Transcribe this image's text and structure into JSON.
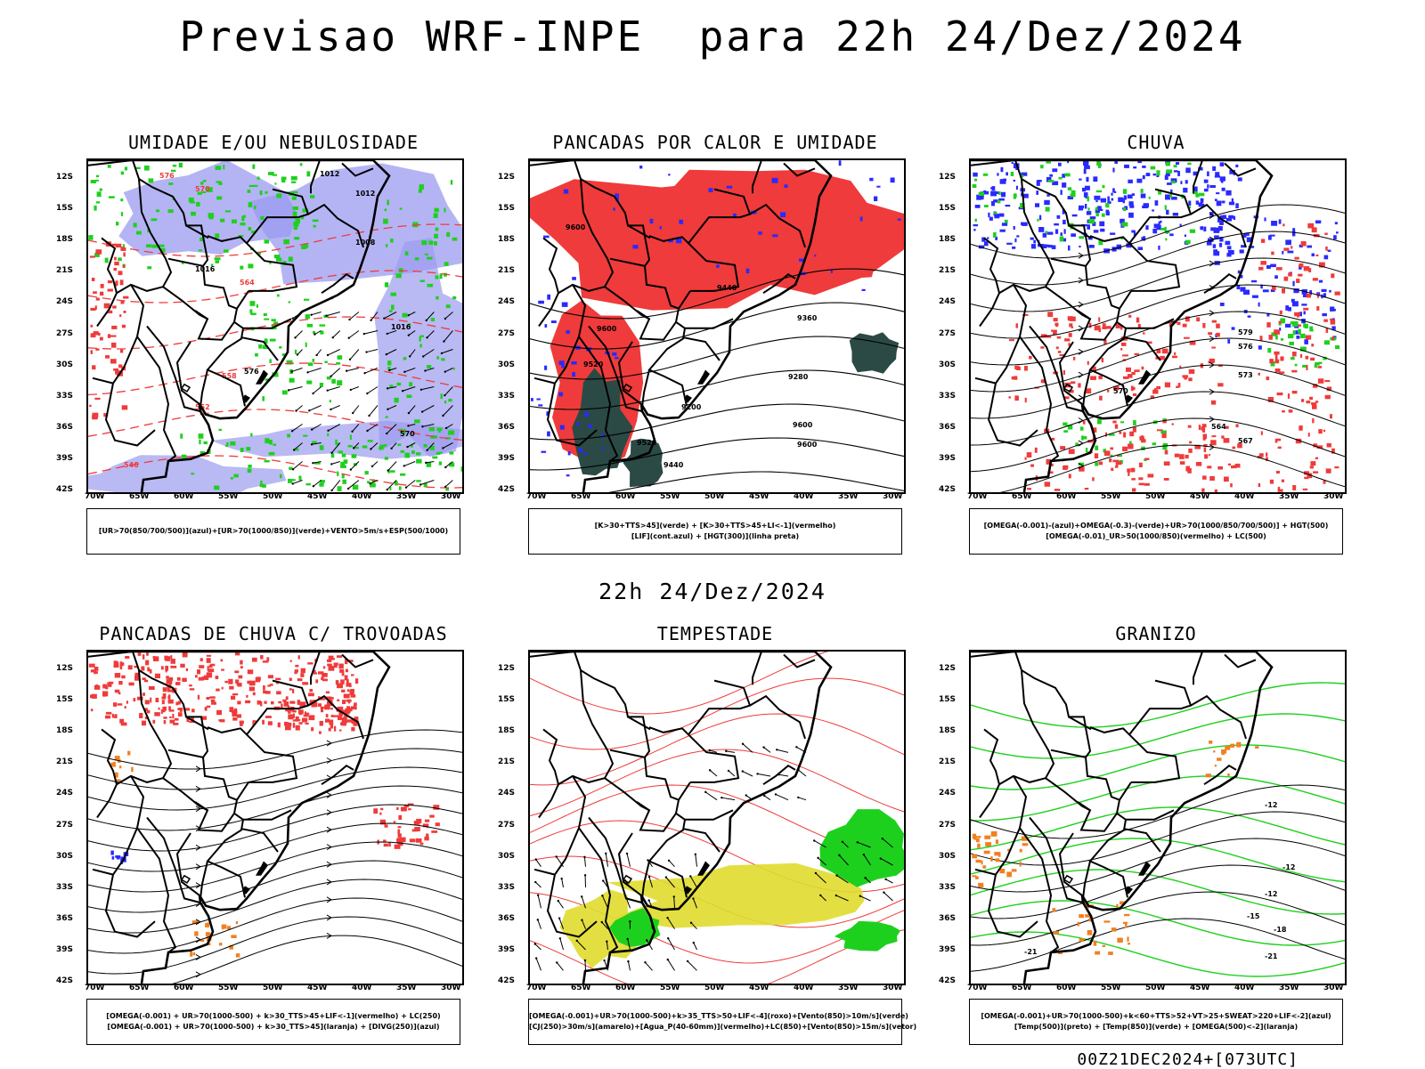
{
  "page": {
    "title": "Previsao WRF-INPE  para 22h 24/Dez/2024",
    "mid_title": "22h 24/Dez/2024",
    "footer": "00Z21DEC2024+[073UTC]"
  },
  "colors": {
    "red": "#ef3b3b",
    "green": "#1ed01e",
    "blue": "#2a2aff",
    "lavender": "#9b9bf0",
    "darkgreen": "#2b4a45",
    "yellow": "#e0dc2e",
    "orange": "#f08020",
    "black": "#000000"
  },
  "chart_data": [
    {
      "type": "map",
      "title": "UMIDADE E/OU NEBULOSIDADE",
      "lat_labels": [
        "12S",
        "15S",
        "18S",
        "21S",
        "24S",
        "27S",
        "30S",
        "33S",
        "36S",
        "39S",
        "42S"
      ],
      "lon_labels": [
        "70W",
        "65W",
        "60W",
        "55W",
        "50W",
        "45W",
        "40W",
        "35W",
        "30W"
      ],
      "lat_range": [
        -42,
        -10
      ],
      "lon_range": [
        -71,
        -29
      ],
      "legend": [
        "[UR>70(850/700/500)](azul)+[UR>70(1000/850)](verde)+VENTO>5m/s+ESP(500/1000)"
      ],
      "contour_labels": [
        "1012",
        "1012",
        "1008",
        "1016",
        "1016",
        "576",
        "570",
        "564",
        "558",
        "552",
        "546"
      ]
    },
    {
      "type": "map",
      "title": "PANCADAS POR CALOR E UMIDADE",
      "lat_labels": [
        "12S",
        "15S",
        "18S",
        "21S",
        "24S",
        "27S",
        "30S",
        "33S",
        "36S",
        "39S",
        "42S"
      ],
      "lon_labels": [
        "70W",
        "65W",
        "60W",
        "55W",
        "50W",
        "45W",
        "40W",
        "35W",
        "30W"
      ],
      "lat_range": [
        -42,
        -10
      ],
      "lon_range": [
        -71,
        -29
      ],
      "legend": [
        "[K>30+TTS>45](verde) + [K>30+TTS>45+LI<-1](vermelho)",
        "[LIF](cont.azul) + [HGT(300)](linha preta)"
      ],
      "contour_labels": [
        "9600",
        "9600",
        "9520",
        "9440",
        "9360",
        "9280",
        "9200"
      ]
    },
    {
      "type": "map",
      "title": "CHUVA",
      "lat_labels": [
        "12S",
        "15S",
        "18S",
        "21S",
        "24S",
        "27S",
        "30S",
        "33S",
        "36S",
        "39S",
        "42S"
      ],
      "lon_labels": [
        "70W",
        "65W",
        "60W",
        "55W",
        "50W",
        "45W",
        "40W",
        "35W",
        "30W"
      ],
      "lat_range": [
        -42,
        -10
      ],
      "lon_range": [
        -71,
        -29
      ],
      "legend": [
        "[OMEGA(-0.001)-(azul)+OMEGA(-0.3)-(verde)+UR>70(1000/850/700/500)] + HGT(500)",
        "[OMEGA(-0.01)_UR>50(1000/850)(vermelho) + LC(500)"
      ],
      "contour_labels": [
        "579",
        "576",
        "573",
        "570",
        "567",
        "564"
      ]
    },
    {
      "type": "map",
      "title": "PANCADAS DE CHUVA C/ TROVOADAS",
      "lat_labels": [
        "12S",
        "15S",
        "18S",
        "21S",
        "24S",
        "27S",
        "30S",
        "33S",
        "36S",
        "39S",
        "42S"
      ],
      "lon_labels": [
        "70W",
        "65W",
        "60W",
        "55W",
        "50W",
        "45W",
        "40W",
        "35W",
        "30W"
      ],
      "lat_range": [
        -42,
        -10
      ],
      "lon_range": [
        -71,
        -29
      ],
      "legend": [
        "[OMEGA(-0.001) + UR>70(1000-500) + k>30_TTS>45+LIF<-1](vermelho) + LC(250)",
        "[OMEGA(-0.001) + UR>70(1000-500) + k>30_TTS>45](laranja) + [DIVG(250)](azul)"
      ],
      "contour_labels": []
    },
    {
      "type": "map",
      "title": "TEMPESTADE",
      "lat_labels": [
        "12S",
        "15S",
        "18S",
        "21S",
        "24S",
        "27S",
        "30S",
        "33S",
        "36S",
        "39S",
        "42S"
      ],
      "lon_labels": [
        "70W",
        "65W",
        "60W",
        "55W",
        "50W",
        "45W",
        "40W",
        "35W",
        "30W"
      ],
      "lat_range": [
        -42,
        -10
      ],
      "lon_range": [
        -71,
        -29
      ],
      "legend": [
        "[OMEGA(-0.001)+UR>70(1000-500)+k>35_TTS>50+LIF<-4](roxo)+[Vento(850)>10m/s](verde)",
        "[CJ(250)>30m/s](amarelo)+[Agua_P(40-60mm)](vermelho)+LC(850)+[Vento(850)>15m/s](vetor)"
      ],
      "contour_labels": []
    },
    {
      "type": "map",
      "title": "GRANIZO",
      "lat_labels": [
        "12S",
        "15S",
        "18S",
        "21S",
        "24S",
        "27S",
        "30S",
        "33S",
        "36S",
        "39S",
        "42S"
      ],
      "lon_labels": [
        "70W",
        "65W",
        "60W",
        "55W",
        "50W",
        "45W",
        "40W",
        "35W",
        "30W"
      ],
      "lat_range": [
        -42,
        -10
      ],
      "lon_range": [
        -71,
        -29
      ],
      "legend": [
        "[OMEGA(-0.001)+UR>70(1000-500)+k<60+TTS>52+VT>25+SWEAT>220+LIF<-2](azul)",
        "[Temp(500)](preto) + [Temp(850)](verde) + [OMEGA(500)<-2](laranja)"
      ],
      "contour_labels": [
        "-12",
        "-12",
        "-12",
        "-15",
        "-18",
        "-21",
        "-21"
      ]
    }
  ]
}
